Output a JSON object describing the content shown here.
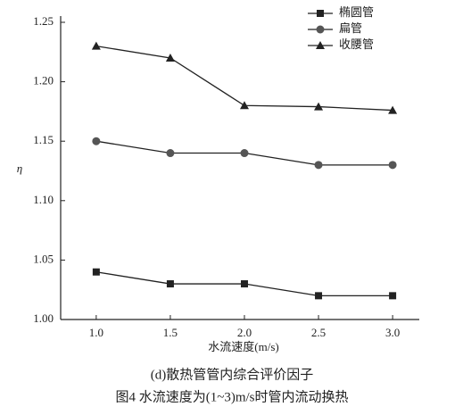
{
  "chart_data": {
    "type": "line",
    "x_label": "水流速度(m/s)",
    "y_label": "η",
    "subtitle": "(d)散热管管内综合评价因子",
    "title": "图4 水流速度为(1~3)m/s时管内流动换热",
    "x": [
      1.0,
      1.5,
      2.0,
      2.5,
      3.0
    ],
    "series": [
      {
        "name": "椭圆管",
        "color": "#222222",
        "marker": "square",
        "values": [
          1.04,
          1.03,
          1.03,
          1.02,
          1.02
        ]
      },
      {
        "name": "扁管",
        "color": "#555555",
        "marker": "circle",
        "values": [
          1.15,
          1.14,
          1.14,
          1.13,
          1.13
        ]
      },
      {
        "name": "收腰管",
        "color": "#222222",
        "marker": "triangle",
        "values": [
          1.23,
          1.22,
          1.18,
          1.179,
          1.176
        ]
      }
    ],
    "xlim": [
      0.76,
      3.18
    ],
    "xticks": [
      {
        "value": 1,
        "label": "1.0"
      },
      1.5,
      {
        "value": 2,
        "label": "2.0"
      },
      2.5,
      {
        "value": 3,
        "label": "3.0"
      }
    ],
    "ylim": [
      1.0,
      1.25
    ],
    "yticks": [
      {
        "value": 1,
        "label": "1.00"
      },
      {
        "value": 1.05,
        "label": "1.05"
      },
      {
        "value": 1.1,
        "label": "1.10"
      },
      1.15,
      {
        "value": 1.2,
        "label": "1.20"
      },
      1.25
    ],
    "legend": "top-right"
  }
}
